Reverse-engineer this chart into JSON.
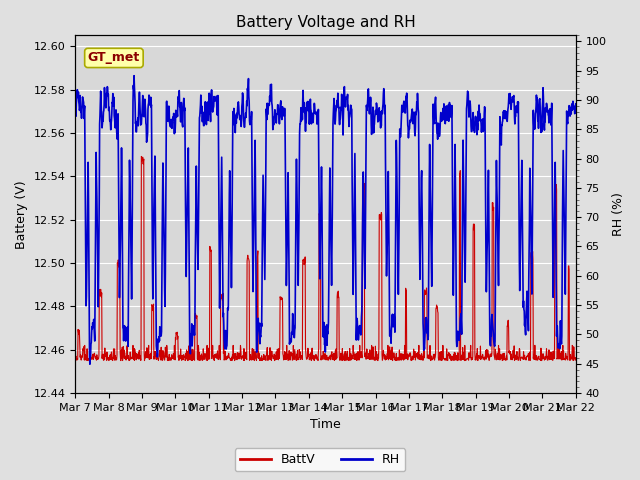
{
  "title": "Battery Voltage and RH",
  "xlabel": "Time",
  "ylabel_left": "Battery (V)",
  "ylabel_right": "RH (%)",
  "label_box_text": "GT_met",
  "legend_labels": [
    "BattV",
    "RH"
  ],
  "batt_color": "#cc0000",
  "rh_color": "#0000cc",
  "ylim_left": [
    12.44,
    12.605
  ],
  "ylim_right": [
    40,
    101
  ],
  "yticks_left": [
    12.44,
    12.46,
    12.48,
    12.5,
    12.52,
    12.54,
    12.56,
    12.58,
    12.6
  ],
  "yticks_right": [
    40,
    45,
    50,
    55,
    60,
    65,
    70,
    75,
    80,
    85,
    90,
    95,
    100
  ],
  "xtick_labels": [
    "Mar 7",
    "Mar 8",
    "Mar 9",
    "Mar 10",
    "Mar 11",
    "Mar 12",
    "Mar 13",
    "Mar 14",
    "Mar 15",
    "Mar 16",
    "Mar 17",
    "Mar 18",
    "Mar 19",
    "Mar 20",
    "Mar 21",
    "Mar 22"
  ],
  "bg_color": "#e0e0e0",
  "plot_bg_color": "#d8d8d8",
  "grid_color": "#ffffff",
  "title_fontsize": 11,
  "axis_label_fontsize": 9,
  "tick_fontsize": 8,
  "legend_fontsize": 9,
  "linewidth_batt": 0.8,
  "linewidth_rh": 1.2
}
